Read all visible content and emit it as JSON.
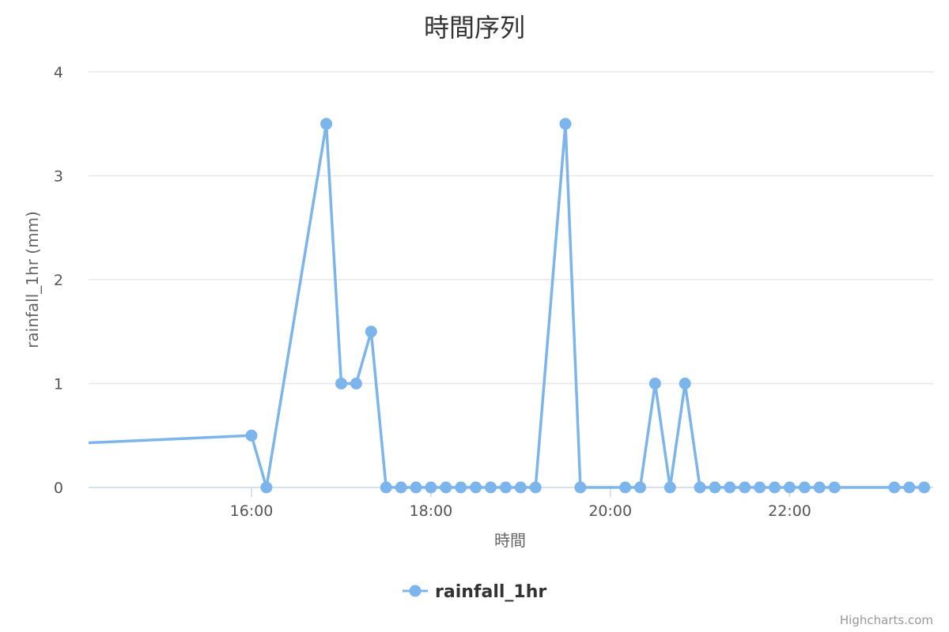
{
  "chart_data": {
    "type": "line",
    "title": "時間序列",
    "xlabel": "時間",
    "ylabel": "rainfall_1hr (mm)",
    "ylim": [
      0,
      4
    ],
    "yticks": [
      0,
      1,
      2,
      3,
      4
    ],
    "xlim": [
      "14:11",
      "23:36"
    ],
    "xticks": [
      "16:00",
      "18:00",
      "20:00",
      "22:00"
    ],
    "grid": true,
    "legend_position": "bottom",
    "series": [
      {
        "name": "rainfall_1hr",
        "color": "#7cb5ec",
        "points": [
          {
            "x": "14:11",
            "y": 0.43,
            "marker": false
          },
          {
            "x": "16:00",
            "y": 0.5
          },
          {
            "x": "16:10",
            "y": 0
          },
          {
            "x": "16:50",
            "y": 3.5
          },
          {
            "x": "17:00",
            "y": 1
          },
          {
            "x": "17:10",
            "y": 1
          },
          {
            "x": "17:20",
            "y": 1.5
          },
          {
            "x": "17:30",
            "y": 0
          },
          {
            "x": "17:40",
            "y": 0
          },
          {
            "x": "17:50",
            "y": 0
          },
          {
            "x": "18:00",
            "y": 0
          },
          {
            "x": "18:10",
            "y": 0
          },
          {
            "x": "18:20",
            "y": 0
          },
          {
            "x": "18:30",
            "y": 0
          },
          {
            "x": "18:40",
            "y": 0
          },
          {
            "x": "18:50",
            "y": 0
          },
          {
            "x": "19:00",
            "y": 0
          },
          {
            "x": "19:10",
            "y": 0
          },
          {
            "x": "19:30",
            "y": 3.5
          },
          {
            "x": "19:40",
            "y": 0
          },
          {
            "x": "20:10",
            "y": 0
          },
          {
            "x": "20:20",
            "y": 0
          },
          {
            "x": "20:30",
            "y": 1
          },
          {
            "x": "20:40",
            "y": 0
          },
          {
            "x": "20:50",
            "y": 1
          },
          {
            "x": "21:00",
            "y": 0
          },
          {
            "x": "21:10",
            "y": 0
          },
          {
            "x": "21:20",
            "y": 0
          },
          {
            "x": "21:30",
            "y": 0
          },
          {
            "x": "21:40",
            "y": 0
          },
          {
            "x": "21:50",
            "y": 0
          },
          {
            "x": "22:00",
            "y": 0
          },
          {
            "x": "22:10",
            "y": 0
          },
          {
            "x": "22:20",
            "y": 0
          },
          {
            "x": "22:30",
            "y": 0
          },
          {
            "x": "23:10",
            "y": 0
          },
          {
            "x": "23:20",
            "y": 0
          },
          {
            "x": "23:30",
            "y": 0
          }
        ]
      }
    ],
    "credits": "Highcharts.com"
  }
}
